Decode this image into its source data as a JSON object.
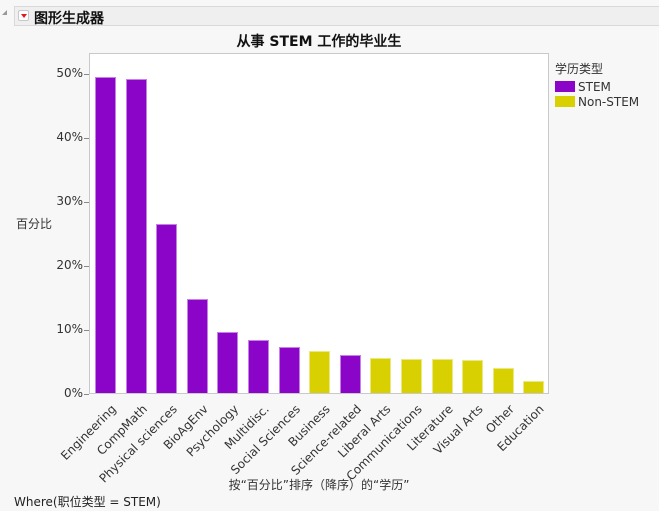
{
  "header": {
    "title": "图形生成器"
  },
  "chart_data": {
    "type": "bar",
    "title": "从事 STEM 工作的毕业生",
    "xlabel": "按“百分比”排序（降序）的“学历”",
    "ylabel": "百分比",
    "ylim": [
      0,
      50
    ],
    "yticks": [
      "0%",
      "10%",
      "20%",
      "30%",
      "40%",
      "50%"
    ],
    "grid": false,
    "legend_position": "right",
    "legend_title": "学历类型",
    "legend": [
      {
        "name": "STEM",
        "color": "#8a05c8"
      },
      {
        "name": "Non-STEM",
        "color": "#d8d000"
      }
    ],
    "categories": [
      "Engineering",
      "CompMath",
      "Physical sciences",
      "BioAgEnv",
      "Psychology",
      "Multidisc.",
      "Social Sciences",
      "Business",
      "Science-related",
      "Liberal Arts",
      "Communications",
      "Literature",
      "Visual Arts",
      "Other",
      "Education"
    ],
    "values": [
      49.4,
      49.1,
      26.4,
      14.7,
      9.5,
      8.3,
      7.2,
      6.5,
      6.0,
      5.5,
      5.3,
      5.3,
      5.2,
      3.9,
      1.8
    ],
    "groups": [
      "STEM",
      "STEM",
      "STEM",
      "STEM",
      "STEM",
      "STEM",
      "STEM",
      "Non-STEM",
      "STEM",
      "Non-STEM",
      "Non-STEM",
      "Non-STEM",
      "Non-STEM",
      "Non-STEM",
      "Non-STEM"
    ]
  },
  "footer": {
    "where": "Where(职位类型 = STEM)"
  }
}
